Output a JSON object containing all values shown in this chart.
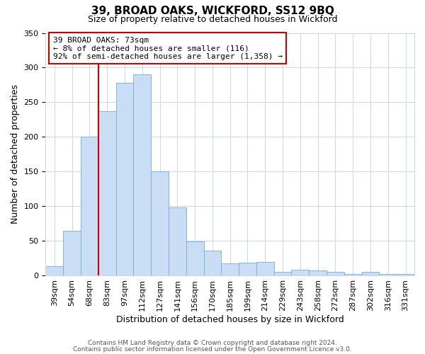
{
  "title": "39, BROAD OAKS, WICKFORD, SS12 9BQ",
  "subtitle": "Size of property relative to detached houses in Wickford",
  "xlabel": "Distribution of detached houses by size in Wickford",
  "ylabel": "Number of detached properties",
  "categories": [
    "39sqm",
    "54sqm",
    "68sqm",
    "83sqm",
    "97sqm",
    "112sqm",
    "127sqm",
    "141sqm",
    "156sqm",
    "170sqm",
    "185sqm",
    "199sqm",
    "214sqm",
    "229sqm",
    "243sqm",
    "258sqm",
    "272sqm",
    "287sqm",
    "302sqm",
    "316sqm",
    "331sqm"
  ],
  "values": [
    13,
    64,
    200,
    237,
    278,
    290,
    150,
    98,
    49,
    36,
    17,
    18,
    19,
    5,
    8,
    7,
    5,
    2,
    5,
    2,
    2
  ],
  "bar_color": "#c9ddf5",
  "bar_edge_color": "#7baad4",
  "vline_x_index": 2,
  "vline_color": "#cc0000",
  "ylim": [
    0,
    350
  ],
  "yticks": [
    0,
    50,
    100,
    150,
    200,
    250,
    300,
    350
  ],
  "annotation_title": "39 BROAD OAKS: 73sqm",
  "annotation_line1": "← 8% of detached houses are smaller (116)",
  "annotation_line2": "92% of semi-detached houses are larger (1,358) →",
  "annotation_box_color": "#ffffff",
  "annotation_box_edge": "#cc0000",
  "footer1": "Contains HM Land Registry data © Crown copyright and database right 2024.",
  "footer2": "Contains public sector information licensed under the Open Government Licence v3.0.",
  "bg_color": "#ffffff",
  "plot_bg_color": "#ffffff",
  "grid_color": "#d0d8e8",
  "title_fontsize": 11,
  "subtitle_fontsize": 9,
  "ylabel_fontsize": 9,
  "xlabel_fontsize": 9,
  "tick_fontsize": 8,
  "footer_fontsize": 6.5
}
